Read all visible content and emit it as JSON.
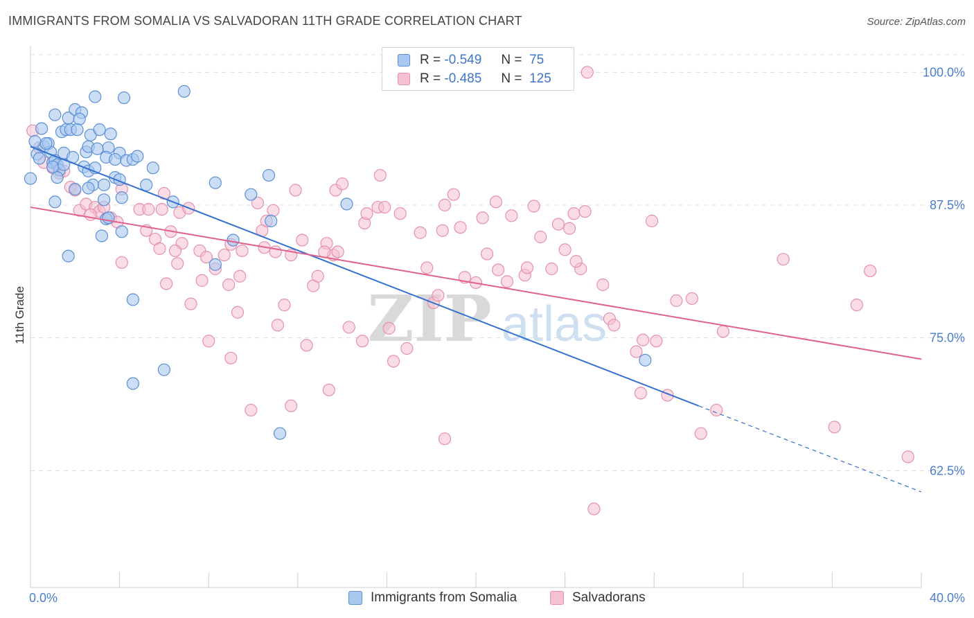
{
  "title": "IMMIGRANTS FROM SOMALIA VS SALVADORAN 11TH GRADE CORRELATION CHART",
  "source": "Source: ZipAtlas.com",
  "watermark": {
    "zip": "ZIP",
    "atlas": "atlas"
  },
  "colors": {
    "somalia_fill": "#a9c8f0",
    "somalia_stroke": "#5b8fd6",
    "somalia_line": "#3470d0",
    "salvadoran_fill": "#f5c0d0",
    "salvadoran_stroke": "#e590ad",
    "salvadoran_line": "#e0608e",
    "grid": "#dddddd",
    "tick_text": "#4a7ecf"
  },
  "legend": {
    "r_label": "R =",
    "n_label": "N =",
    "rows": [
      {
        "series": "Immigrants from Somalia",
        "r": "-0.549",
        "n": "75"
      },
      {
        "series": "Salvadorans",
        "r": "-0.485",
        "n": "125"
      }
    ]
  },
  "bottom_legend": [
    "Immigrants from Somalia",
    "Salvadorans"
  ],
  "chart_data": {
    "type": "scatter",
    "title": "IMMIGRANTS FROM SOMALIA VS SALVADORAN 11TH GRADE CORRELATION CHART",
    "xlabel": "",
    "ylabel": "11th Grade",
    "xlim": [
      0,
      40
    ],
    "ylim": [
      51.5,
      102.5
    ],
    "x_tick_labels": [
      "0.0%",
      "40.0%"
    ],
    "y_ticks": [
      62.5,
      75.0,
      87.5,
      100.0
    ],
    "y_tick_labels": [
      "62.5%",
      "75.0%",
      "87.5%",
      "100.0%"
    ],
    "grid": "horizontal dashed",
    "legend_position": "top-center",
    "series": [
      {
        "name": "Immigrants from Somalia",
        "r": -0.549,
        "n": 75,
        "trend": {
          "x0": 0.0,
          "y0": 93.0,
          "x1": 30.0,
          "y1": 68.6,
          "dashed_to_x": 40.0,
          "dashed_to_y": 60.5
        },
        "points": [
          [
            0.5,
            94.7
          ],
          [
            0.6,
            93.0
          ],
          [
            0.8,
            93.3
          ],
          [
            0.9,
            92.5
          ],
          [
            1.0,
            91.5
          ],
          [
            1.1,
            91.7
          ],
          [
            1.2,
            91.3
          ],
          [
            1.3,
            90.8
          ],
          [
            1.1,
            96.0
          ],
          [
            1.4,
            94.4
          ],
          [
            1.6,
            94.6
          ],
          [
            1.8,
            94.6
          ],
          [
            1.7,
            95.7
          ],
          [
            2.0,
            96.5
          ],
          [
            2.3,
            96.2
          ],
          [
            2.2,
            95.6
          ],
          [
            2.1,
            94.6
          ],
          [
            1.5,
            92.4
          ],
          [
            1.9,
            92.0
          ],
          [
            2.5,
            92.5
          ],
          [
            2.6,
            93.0
          ],
          [
            2.7,
            94.1
          ],
          [
            3.1,
            94.6
          ],
          [
            3.6,
            94.2
          ],
          [
            3.5,
            92.9
          ],
          [
            2.4,
            91.1
          ],
          [
            2.6,
            90.7
          ],
          [
            2.9,
            91.0
          ],
          [
            3.4,
            92.0
          ],
          [
            4.0,
            92.4
          ],
          [
            4.3,
            91.7
          ],
          [
            4.6,
            91.8
          ],
          [
            4.8,
            92.1
          ],
          [
            3.8,
            91.8
          ],
          [
            1.2,
            90.1
          ],
          [
            2.0,
            89.0
          ],
          [
            2.8,
            89.4
          ],
          [
            3.3,
            89.4
          ],
          [
            3.8,
            90.1
          ],
          [
            4.0,
            89.9
          ],
          [
            5.2,
            89.4
          ],
          [
            5.5,
            91.0
          ],
          [
            6.4,
            87.8
          ],
          [
            2.6,
            89.1
          ],
          [
            1.1,
            87.8
          ],
          [
            3.3,
            88.0
          ],
          [
            4.1,
            88.2
          ],
          [
            3.4,
            86.2
          ],
          [
            4.1,
            85.0
          ],
          [
            3.2,
            84.6
          ],
          [
            3.5,
            86.3
          ],
          [
            1.7,
            82.7
          ],
          [
            4.6,
            78.6
          ],
          [
            4.6,
            70.7
          ],
          [
            6.0,
            72.0
          ],
          [
            2.9,
            97.7
          ],
          [
            4.2,
            97.6
          ],
          [
            6.9,
            98.2
          ],
          [
            8.3,
            89.6
          ],
          [
            9.1,
            84.2
          ],
          [
            8.3,
            81.9
          ],
          [
            9.9,
            88.5
          ],
          [
            10.7,
            90.3
          ],
          [
            10.8,
            86.0
          ],
          [
            14.2,
            87.6
          ],
          [
            11.2,
            66.0
          ],
          [
            27.6,
            72.9
          ],
          [
            0.3,
            92.3
          ],
          [
            0.4,
            91.9
          ],
          [
            0.7,
            93.3
          ],
          [
            0.0,
            90.0
          ],
          [
            1.0,
            91.1
          ],
          [
            1.5,
            91.3
          ],
          [
            0.2,
            93.5
          ],
          [
            3.0,
            92.8
          ]
        ]
      },
      {
        "name": "Salvadorans",
        "r": -0.485,
        "n": 125,
        "trend": {
          "x0": 0.0,
          "y0": 87.3,
          "x1": 40.0,
          "y1": 73.0
        },
        "points": [
          [
            0.1,
            94.5
          ],
          [
            0.4,
            92.9
          ],
          [
            0.6,
            91.5
          ],
          [
            1.0,
            91.0
          ],
          [
            1.3,
            90.5
          ],
          [
            1.5,
            90.7
          ],
          [
            1.8,
            89.2
          ],
          [
            2.0,
            88.9
          ],
          [
            2.2,
            87.0
          ],
          [
            2.5,
            87.6
          ],
          [
            2.9,
            87.3
          ],
          [
            3.1,
            86.9
          ],
          [
            3.3,
            87.3
          ],
          [
            2.7,
            86.6
          ],
          [
            3.6,
            86.3
          ],
          [
            3.9,
            85.9
          ],
          [
            4.1,
            89.0
          ],
          [
            4.9,
            87.1
          ],
          [
            5.3,
            87.1
          ],
          [
            5.2,
            85.1
          ],
          [
            5.9,
            87.1
          ],
          [
            6.0,
            88.6
          ],
          [
            6.7,
            86.8
          ],
          [
            7.1,
            87.2
          ],
          [
            5.6,
            84.3
          ],
          [
            6.3,
            85.0
          ],
          [
            6.8,
            83.9
          ],
          [
            6.5,
            83.2
          ],
          [
            5.8,
            83.4
          ],
          [
            6.6,
            82.0
          ],
          [
            4.1,
            82.1
          ],
          [
            7.6,
            83.2
          ],
          [
            7.9,
            82.6
          ],
          [
            8.3,
            81.5
          ],
          [
            8.7,
            82.8
          ],
          [
            9.0,
            83.8
          ],
          [
            9.5,
            83.2
          ],
          [
            9.4,
            80.8
          ],
          [
            10.4,
            85.1
          ],
          [
            10.5,
            83.5
          ],
          [
            10.9,
            87.0
          ],
          [
            10.6,
            86.0
          ],
          [
            10.2,
            87.7
          ],
          [
            11.0,
            83.1
          ],
          [
            11.7,
            82.8
          ],
          [
            12.2,
            84.2
          ],
          [
            13.3,
            83.9
          ],
          [
            13.6,
            82.8
          ],
          [
            13.8,
            83.1
          ],
          [
            12.7,
            79.9
          ],
          [
            12.9,
            80.8
          ],
          [
            11.4,
            78.1
          ],
          [
            11.1,
            76.2
          ],
          [
            12.4,
            74.3
          ],
          [
            9.3,
            77.4
          ],
          [
            7.2,
            78.2
          ],
          [
            7.7,
            80.4
          ],
          [
            6.1,
            80.1
          ],
          [
            8.0,
            74.7
          ],
          [
            9.0,
            73.1
          ],
          [
            8.9,
            80.0
          ],
          [
            11.9,
            88.9
          ],
          [
            13.7,
            88.9
          ],
          [
            14.0,
            89.5
          ],
          [
            13.2,
            83.1
          ],
          [
            14.3,
            76.0
          ],
          [
            14.9,
            74.7
          ],
          [
            13.4,
            70.1
          ],
          [
            15.0,
            85.8
          ],
          [
            15.1,
            86.7
          ],
          [
            15.6,
            87.3
          ],
          [
            15.9,
            87.3
          ],
          [
            15.7,
            90.3
          ],
          [
            16.6,
            86.7
          ],
          [
            16.3,
            72.8
          ],
          [
            16.1,
            75.9
          ],
          [
            16.9,
            74.0
          ],
          [
            17.8,
            81.6
          ],
          [
            18.1,
            78.3
          ],
          [
            17.5,
            84.9
          ],
          [
            18.5,
            85.1
          ],
          [
            18.6,
            87.5
          ],
          [
            19.0,
            88.5
          ],
          [
            19.3,
            85.4
          ],
          [
            19.5,
            80.7
          ],
          [
            20.0,
            80.2
          ],
          [
            20.3,
            86.3
          ],
          [
            20.5,
            82.9
          ],
          [
            20.9,
            87.8
          ],
          [
            21.0,
            81.4
          ],
          [
            21.4,
            80.3
          ],
          [
            21.6,
            86.5
          ],
          [
            22.2,
            80.9
          ],
          [
            22.3,
            81.6
          ],
          [
            22.6,
            87.4
          ],
          [
            22.9,
            84.5
          ],
          [
            23.4,
            81.5
          ],
          [
            23.7,
            85.7
          ],
          [
            24.0,
            83.3
          ],
          [
            24.2,
            85.3
          ],
          [
            24.4,
            86.7
          ],
          [
            24.7,
            81.5
          ],
          [
            24.9,
            86.9
          ],
          [
            24.5,
            82.2
          ],
          [
            25.0,
            100.0
          ],
          [
            25.7,
            80.0
          ],
          [
            26.0,
            76.8
          ],
          [
            26.2,
            76.2
          ],
          [
            27.5,
            74.8
          ],
          [
            28.1,
            74.7
          ],
          [
            27.2,
            73.7
          ],
          [
            27.4,
            69.8
          ],
          [
            28.6,
            69.6
          ],
          [
            29.0,
            78.5
          ],
          [
            29.7,
            78.7
          ],
          [
            27.9,
            86.0
          ],
          [
            31.1,
            75.6
          ],
          [
            30.8,
            68.2
          ],
          [
            30.1,
            66.0
          ],
          [
            33.8,
            82.4
          ],
          [
            36.1,
            66.6
          ],
          [
            37.1,
            78.1
          ],
          [
            37.7,
            81.3
          ],
          [
            39.4,
            63.8
          ],
          [
            18.6,
            65.5
          ],
          [
            9.9,
            68.2
          ],
          [
            11.7,
            68.6
          ],
          [
            18.3,
            79.0
          ],
          [
            25.3,
            58.9
          ]
        ]
      }
    ]
  }
}
